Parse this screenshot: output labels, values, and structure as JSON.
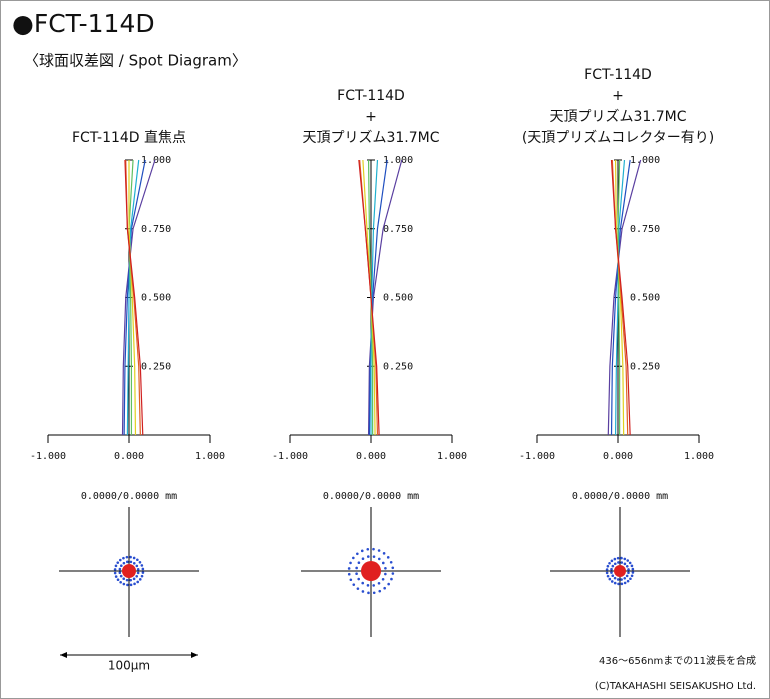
{
  "title": "●FCT-114D",
  "subtitle": "〈球面収差図 / Spot Diagram〉",
  "scale_label": "100μm",
  "note": "436～656nmまでの11波長を合成",
  "copyright": "(C)TAKAHASHI SEISAKUSHO Ltd.",
  "chart_data": [
    {
      "type": "line",
      "title": [
        "FCT-114D 直焦点"
      ],
      "spot_label": "0.0000/0.0000 mm",
      "xlim": [
        -1,
        1
      ],
      "ylim": [
        0,
        1
      ],
      "xticks": [
        {
          "value": -1,
          "label": "-1.000"
        },
        {
          "value": 0,
          "label": "0.000"
        },
        {
          "value": 1,
          "label": "1.000"
        }
      ],
      "yticks": [
        {
          "value": 0.25,
          "label": "0.250"
        },
        {
          "value": 0.5,
          "label": "0.500"
        },
        {
          "value": 0.75,
          "label": "0.750"
        },
        {
          "value": 1,
          "label": "1.000"
        }
      ],
      "pupil": [
        0,
        0.25,
        0.5,
        0.75,
        1
      ],
      "series": [
        {
          "color": "#5a3fa0",
          "values": [
            -0.08,
            -0.07,
            -0.04,
            0.05,
            0.32
          ]
        },
        {
          "color": "#1f4fc0",
          "values": [
            -0.06,
            -0.05,
            -0.02,
            0.03,
            0.2
          ]
        },
        {
          "color": "#20b0d0",
          "values": [
            -0.02,
            -0.01,
            0.0,
            0.02,
            0.12
          ]
        },
        {
          "color": "#60c060",
          "values": [
            0.03,
            0.03,
            0.02,
            0.0,
            0.05
          ]
        },
        {
          "color": "#e0d020",
          "values": [
            0.08,
            0.07,
            0.04,
            0.0,
            0.0
          ]
        },
        {
          "color": "#e06020",
          "values": [
            0.14,
            0.12,
            0.06,
            -0.02,
            -0.04
          ]
        },
        {
          "color": "#d02020",
          "values": [
            0.17,
            0.14,
            0.07,
            -0.02,
            -0.05
          ]
        }
      ]
    },
    {
      "type": "line",
      "title": [
        "FCT-114D",
        "+",
        "天頂プリズム31.7MC"
      ],
      "spot_label": "0.0000/0.0000 mm",
      "xlim": [
        -1,
        1
      ],
      "ylim": [
        0,
        1
      ],
      "xticks": [
        {
          "value": -1,
          "label": "-1.000"
        },
        {
          "value": 0,
          "label": "0.000"
        },
        {
          "value": 1,
          "label": "1.000"
        }
      ],
      "yticks": [
        {
          "value": 0.25,
          "label": "0.250"
        },
        {
          "value": 0.5,
          "label": "0.500"
        },
        {
          "value": 0.75,
          "label": "0.750"
        },
        {
          "value": 1,
          "label": "1.000"
        }
      ],
      "pupil": [
        0,
        0.25,
        0.5,
        0.75,
        1
      ],
      "series": [
        {
          "color": "#5a3fa0",
          "values": [
            -0.03,
            -0.02,
            0.03,
            0.15,
            0.38
          ]
        },
        {
          "color": "#1f4fc0",
          "values": [
            -0.02,
            -0.01,
            0.02,
            0.08,
            0.2
          ]
        },
        {
          "color": "#20b0d0",
          "values": [
            0.0,
            0.0,
            0.01,
            0.03,
            0.08
          ]
        },
        {
          "color": "#60c060",
          "values": [
            0.02,
            0.02,
            0.0,
            -0.02,
            -0.03
          ]
        },
        {
          "color": "#e0d020",
          "values": [
            0.05,
            0.04,
            0.0,
            -0.05,
            -0.1
          ]
        },
        {
          "color": "#e06020",
          "values": [
            0.08,
            0.06,
            0.0,
            -0.07,
            -0.14
          ]
        },
        {
          "color": "#d02020",
          "values": [
            0.1,
            0.07,
            0.0,
            -0.07,
            -0.15
          ]
        }
      ]
    },
    {
      "type": "line",
      "title": [
        "FCT-114D",
        "+",
        "天頂プリズム31.7MC",
        "(天頂プリズムコレクター有り)"
      ],
      "spot_label": "0.0000/0.0000 mm",
      "xlim": [
        -1,
        1
      ],
      "ylim": [
        0,
        1
      ],
      "xticks": [
        {
          "value": -1,
          "label": "-1.000"
        },
        {
          "value": 0,
          "label": "0.000"
        },
        {
          "value": 1,
          "label": "1.000"
        }
      ],
      "yticks": [
        {
          "value": 0.25,
          "label": "0.250"
        },
        {
          "value": 0.5,
          "label": "0.500"
        },
        {
          "value": 0.75,
          "label": "0.750"
        },
        {
          "value": 1,
          "label": "1.000"
        }
      ],
      "pupil": [
        0,
        0.25,
        0.5,
        0.75,
        1
      ],
      "series": [
        {
          "color": "#5a3fa0",
          "values": [
            -0.12,
            -0.1,
            -0.05,
            0.05,
            0.28
          ]
        },
        {
          "color": "#1f4fc0",
          "values": [
            -0.08,
            -0.07,
            -0.03,
            0.03,
            0.15
          ]
        },
        {
          "color": "#20b0d0",
          "values": [
            -0.03,
            -0.02,
            0.0,
            0.01,
            0.08
          ]
        },
        {
          "color": "#60c060",
          "values": [
            0.02,
            0.02,
            0.01,
            0.0,
            0.02
          ]
        },
        {
          "color": "#e0d020",
          "values": [
            0.07,
            0.06,
            0.03,
            -0.02,
            -0.03
          ]
        },
        {
          "color": "#e06020",
          "values": [
            0.12,
            0.1,
            0.04,
            -0.03,
            -0.07
          ]
        },
        {
          "color": "#d02020",
          "values": [
            0.15,
            0.12,
            0.05,
            -0.03,
            -0.08
          ]
        }
      ]
    }
  ]
}
